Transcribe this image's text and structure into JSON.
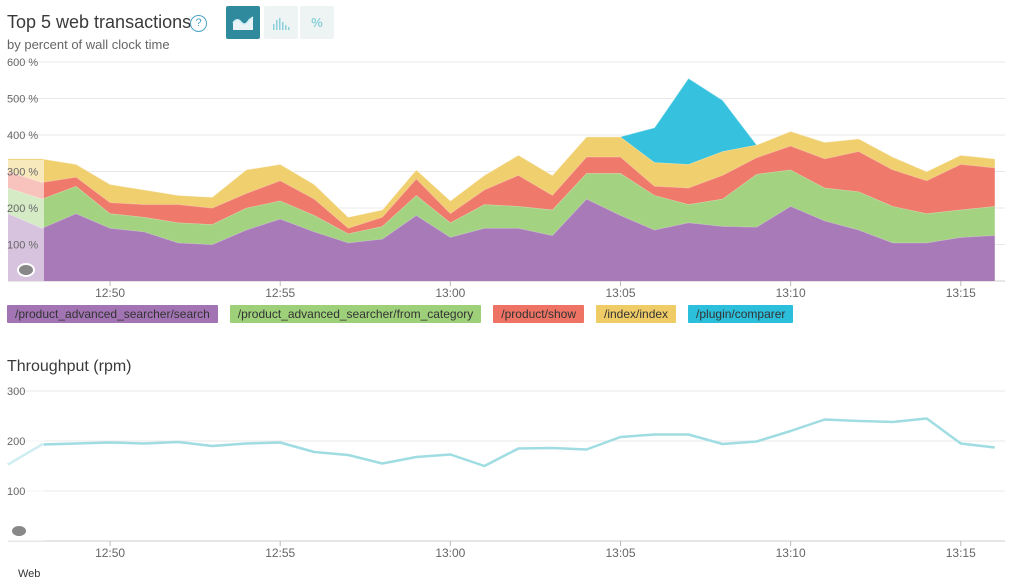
{
  "header": {
    "title": "Top 5 web transactions",
    "help_icon": "question-circle-icon",
    "subtitle": "by percent of wall clock time",
    "toggles": [
      {
        "icon": "area-chart-icon",
        "active": true
      },
      {
        "icon": "bar-chart-icon",
        "active": false
      },
      {
        "icon": "percent-icon",
        "label": "%",
        "active": false
      }
    ]
  },
  "colors": {
    "search": "#a374b4",
    "from_category": "#9ed07a",
    "show": "#ee7364",
    "index": "#efcc66",
    "comparer": "#2bbfdc",
    "throughput": "#9fdde2",
    "grid": "#e8e8e8",
    "axis_text": "#666666"
  },
  "legend": [
    {
      "label": "/product_advanced_searcher/search",
      "color": "#a374b4"
    },
    {
      "label": "/product_advanced_searcher/from_category",
      "color": "#9ed07a"
    },
    {
      "label": "/product/show",
      "color": "#ee7364"
    },
    {
      "label": "/index/index",
      "color": "#efcc66"
    },
    {
      "label": "/plugin/comparer",
      "color": "#2bbfdc"
    }
  ],
  "throughput": {
    "title": "Throughput (rpm)",
    "series_label": "Web"
  },
  "chart_data": [
    {
      "type": "area",
      "stacked": true,
      "title": "Top 5 web transactions",
      "subtitle": "by percent of wall clock time",
      "x_tick_labels": [
        "12:50",
        "12:55",
        "13:00",
        "13:05",
        "13:10",
        "13:15"
      ],
      "y_tick_labels": [
        "100 %",
        "200 %",
        "300 %",
        "400 %",
        "500 %",
        "600 %"
      ],
      "ylim": [
        0,
        600
      ],
      "y_unit": " %",
      "x": [
        "12:47",
        "12:48",
        "12:49",
        "12:50",
        "12:51",
        "12:52",
        "12:53",
        "12:54",
        "12:55",
        "12:56",
        "12:57",
        "12:58",
        "12:59",
        "13:00",
        "13:01",
        "13:02",
        "13:03",
        "13:04",
        "13:05",
        "13:06",
        "13:07",
        "13:08",
        "13:09",
        "13:10",
        "13:11",
        "13:12",
        "13:13",
        "13:14",
        "13:15",
        "13:16"
      ],
      "series": [
        {
          "name": "/product_advanced_searcher/search",
          "color": "#a374b4",
          "values": [
            185,
            145,
            185,
            145,
            135,
            105,
            100,
            140,
            170,
            135,
            105,
            115,
            180,
            120,
            145,
            145,
            125,
            225,
            180,
            140,
            160,
            150,
            148,
            205,
            165,
            140,
            105,
            105,
            120,
            125
          ]
        },
        {
          "name": "/product_advanced_searcher/from_category",
          "color": "#9ed07a",
          "values": [
            70,
            80,
            75,
            40,
            40,
            55,
            55,
            60,
            50,
            45,
            25,
            35,
            55,
            40,
            65,
            60,
            70,
            70,
            115,
            95,
            50,
            75,
            145,
            100,
            90,
            105,
            100,
            80,
            75,
            80
          ]
        },
        {
          "name": "/product/show",
          "color": "#ee7364",
          "values": [
            45,
            45,
            25,
            30,
            35,
            50,
            45,
            40,
            55,
            45,
            15,
            25,
            45,
            25,
            40,
            85,
            40,
            45,
            45,
            25,
            45,
            65,
            45,
            65,
            80,
            110,
            100,
            90,
            125,
            105
          ]
        },
        {
          "name": "/index/index",
          "color": "#efcc66",
          "values": [
            35,
            65,
            35,
            50,
            40,
            25,
            30,
            65,
            45,
            40,
            30,
            20,
            25,
            35,
            40,
            55,
            55,
            55,
            55,
            65,
            65,
            65,
            35,
            40,
            45,
            35,
            35,
            25,
            25,
            25
          ]
        },
        {
          "name": "/plugin/comparer",
          "color": "#2bbfdc",
          "values": [
            0,
            0,
            0,
            0,
            0,
            0,
            0,
            0,
            0,
            0,
            0,
            0,
            0,
            0,
            0,
            0,
            0,
            0,
            0,
            95,
            235,
            140,
            0,
            0,
            0,
            0,
            0,
            0,
            0,
            0
          ]
        }
      ],
      "grid": true,
      "legend": "bottom"
    },
    {
      "type": "line",
      "title": "Throughput (rpm)",
      "x_tick_labels": [
        "12:50",
        "12:55",
        "13:00",
        "13:05",
        "13:10",
        "13:15"
      ],
      "y_tick_labels": [
        "100",
        "200",
        "300"
      ],
      "ylim": [
        0,
        300
      ],
      "x": [
        "12:47",
        "12:48",
        "12:49",
        "12:50",
        "12:51",
        "12:52",
        "12:53",
        "12:54",
        "12:55",
        "12:56",
        "12:57",
        "12:58",
        "12:59",
        "13:00",
        "13:01",
        "13:02",
        "13:03",
        "13:04",
        "13:05",
        "13:06",
        "13:07",
        "13:08",
        "13:09",
        "13:10",
        "13:11",
        "13:12",
        "13:13",
        "13:14",
        "13:15",
        "13:16"
      ],
      "series": [
        {
          "name": "Web",
          "color": "#9fdde2",
          "values": [
            153,
            193,
            195,
            197,
            195,
            198,
            190,
            195,
            197,
            178,
            172,
            155,
            168,
            173,
            150,
            185,
            186,
            183,
            208,
            213,
            213,
            194,
            199,
            220,
            243,
            240,
            238,
            245,
            195,
            187
          ]
        }
      ],
      "grid": true,
      "legend": "bottom"
    }
  ]
}
